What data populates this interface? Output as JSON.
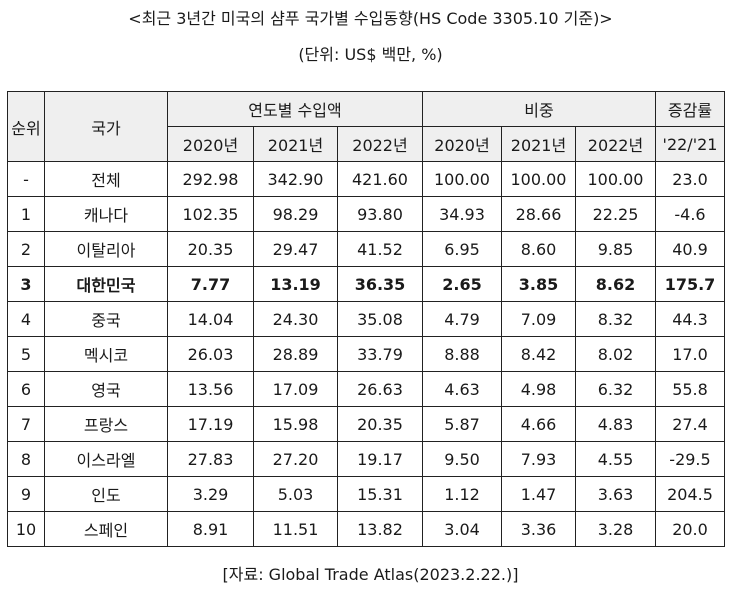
{
  "title": "<최근 3년간 미국의 샴푸 국가별 수입동향(HS Code 3305.10 기준)>",
  "unit": "(단위: US$ 백만, %)",
  "headers": {
    "rank": "순위",
    "country": "국가",
    "import_value": "연도별 수입액",
    "share": "비중",
    "growth": "증감률",
    "years": [
      "2020년",
      "2021년",
      "2022년"
    ],
    "growth_period": "'22/'21"
  },
  "rows": [
    {
      "rank": "-",
      "country": "전체",
      "v2020": "292.98",
      "v2021": "342.90",
      "v2022": "421.60",
      "s2020": "100.00",
      "s2021": "100.00",
      "s2022": "100.00",
      "growth": "23.0"
    },
    {
      "rank": "1",
      "country": "캐나다",
      "v2020": "102.35",
      "v2021": "98.29",
      "v2022": "93.80",
      "s2020": "34.93",
      "s2021": "28.66",
      "s2022": "22.25",
      "growth": "-4.6"
    },
    {
      "rank": "2",
      "country": "이탈리아",
      "v2020": "20.35",
      "v2021": "29.47",
      "v2022": "41.52",
      "s2020": "6.95",
      "s2021": "8.60",
      "s2022": "9.85",
      "growth": "40.9"
    },
    {
      "rank": "3",
      "country": "대한민국",
      "v2020": "7.77",
      "v2021": "13.19",
      "v2022": "36.35",
      "s2020": "2.65",
      "s2021": "3.85",
      "s2022": "8.62",
      "growth": "175.7",
      "highlight": true
    },
    {
      "rank": "4",
      "country": "중국",
      "v2020": "14.04",
      "v2021": "24.30",
      "v2022": "35.08",
      "s2020": "4.79",
      "s2021": "7.09",
      "s2022": "8.32",
      "growth": "44.3"
    },
    {
      "rank": "5",
      "country": "멕시코",
      "v2020": "26.03",
      "v2021": "28.89",
      "v2022": "33.79",
      "s2020": "8.88",
      "s2021": "8.42",
      "s2022": "8.02",
      "growth": "17.0"
    },
    {
      "rank": "6",
      "country": "영국",
      "v2020": "13.56",
      "v2021": "17.09",
      "v2022": "26.63",
      "s2020": "4.63",
      "s2021": "4.98",
      "s2022": "6.32",
      "growth": "55.8"
    },
    {
      "rank": "7",
      "country": "프랑스",
      "v2020": "17.19",
      "v2021": "15.98",
      "v2022": "20.35",
      "s2020": "5.87",
      "s2021": "4.66",
      "s2022": "4.83",
      "growth": "27.4"
    },
    {
      "rank": "8",
      "country": "이스라엘",
      "v2020": "27.83",
      "v2021": "27.20",
      "v2022": "19.17",
      "s2020": "9.50",
      "s2021": "7.93",
      "s2022": "4.55",
      "growth": "-29.5"
    },
    {
      "rank": "9",
      "country": "인도",
      "v2020": "3.29",
      "v2021": "5.03",
      "v2022": "15.31",
      "s2020": "1.12",
      "s2021": "1.47",
      "s2022": "3.63",
      "growth": "204.5"
    },
    {
      "rank": "10",
      "country": "스페인",
      "v2020": "8.91",
      "v2021": "11.51",
      "v2022": "13.82",
      "s2020": "3.04",
      "s2021": "3.36",
      "s2022": "3.28",
      "growth": "20.0"
    }
  ],
  "source": "[자료: Global Trade Atlas(2023.2.22.)]",
  "colors": {
    "header_bg": "#efefef",
    "border": "#222222",
    "text": "#1a1a1a"
  }
}
